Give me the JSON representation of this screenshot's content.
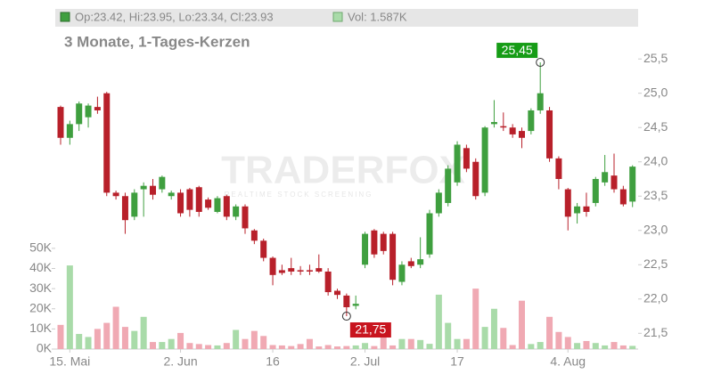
{
  "chart_data": {
    "type": "candlestick",
    "subtitle": "3 Monate, 1-Tages-Kerzen",
    "header": {
      "ohlc": "Op:23.42, Hi:23.95, Lo:23.34, Cl:23.93",
      "volume": "Vol: 1.587K"
    },
    "watermark": [
      "TRADERFOX",
      "REALTIME STOCK SCREENING"
    ],
    "categories": [
      null,
      "15. Mai",
      null,
      null,
      null,
      null,
      null,
      null,
      null,
      null,
      null,
      null,
      null,
      "2. Jun",
      null,
      null,
      null,
      null,
      null,
      null,
      null,
      null,
      null,
      "16",
      null,
      null,
      null,
      null,
      null,
      null,
      null,
      null,
      null,
      "2. Jul",
      null,
      null,
      null,
      null,
      null,
      null,
      null,
      null,
      null,
      "17",
      null,
      null,
      null,
      null,
      null,
      null,
      null,
      null,
      null,
      null,
      null,
      "4. Aug",
      null,
      null,
      null,
      null,
      null,
      null,
      null
    ],
    "open": [
      24.8,
      24.35,
      24.55,
      24.65,
      24.8,
      25.0,
      23.55,
      23.5,
      23.2,
      23.6,
      23.65,
      23.6,
      23.5,
      23.55,
      23.6,
      23.63,
      23.45,
      23.27,
      23.5,
      23.2,
      23.35,
      23.0,
      22.85,
      22.6,
      22.42,
      22.45,
      22.42,
      22.42,
      22.45,
      22.4,
      22.12,
      22.05,
      21.9,
      22.5,
      23.0,
      22.95,
      22.95,
      22.25,
      22.55,
      22.5,
      22.65,
      23.25,
      23.4,
      23.7,
      24.2,
      24.0,
      23.55,
      24.55,
      24.52,
      24.5,
      24.45,
      24.45,
      24.75,
      24.75,
      24.05,
      23.6,
      23.25,
      23.35,
      23.4,
      23.7,
      23.8,
      23.6,
      23.42
    ],
    "high": [
      24.82,
      24.6,
      24.88,
      24.85,
      24.95,
      25.02,
      23.58,
      23.55,
      23.6,
      23.7,
      23.75,
      23.8,
      23.58,
      23.6,
      23.62,
      23.65,
      23.48,
      23.5,
      23.52,
      23.38,
      23.38,
      23.02,
      22.88,
      22.62,
      22.5,
      22.6,
      22.48,
      22.5,
      22.65,
      22.45,
      22.15,
      22.08,
      22.05,
      22.98,
      23.02,
      22.98,
      22.98,
      22.55,
      22.6,
      22.9,
      23.3,
      23.6,
      23.95,
      24.3,
      24.25,
      24.05,
      24.52,
      24.9,
      24.72,
      24.55,
      24.5,
      24.78,
      25.45,
      24.8,
      24.08,
      23.62,
      23.4,
      23.55,
      23.78,
      24.1,
      24.12,
      23.65,
      23.95
    ],
    "low": [
      24.25,
      24.25,
      24.45,
      24.5,
      24.7,
      23.5,
      23.45,
      22.95,
      23.15,
      23.2,
      23.45,
      23.55,
      23.45,
      23.2,
      23.2,
      23.2,
      23.3,
      23.25,
      23.15,
      23.15,
      22.95,
      22.8,
      22.55,
      22.2,
      22.35,
      22.35,
      22.35,
      22.35,
      22.38,
      22.05,
      22.0,
      21.75,
      21.85,
      22.45,
      22.6,
      22.65,
      22.2,
      22.2,
      22.45,
      22.45,
      22.6,
      23.2,
      23.35,
      23.65,
      23.85,
      23.45,
      23.5,
      24.5,
      24.45,
      24.35,
      24.2,
      24.4,
      24.7,
      24.0,
      23.6,
      23.0,
      23.1,
      23.2,
      23.35,
      23.65,
      23.55,
      23.35,
      23.34
    ],
    "close": [
      24.35,
      24.55,
      24.85,
      24.82,
      24.75,
      23.55,
      23.5,
      23.15,
      23.55,
      23.65,
      23.52,
      23.78,
      23.55,
      23.25,
      23.3,
      23.27,
      23.33,
      23.47,
      23.2,
      23.35,
      23.03,
      22.85,
      22.6,
      22.35,
      22.38,
      22.4,
      22.4,
      22.4,
      22.4,
      22.1,
      22.06,
      21.88,
      21.93,
      22.95,
      22.65,
      22.7,
      22.28,
      22.5,
      22.48,
      22.58,
      23.25,
      23.55,
      23.9,
      24.25,
      23.9,
      23.5,
      24.5,
      24.58,
      24.5,
      24.4,
      24.35,
      24.75,
      25.0,
      24.05,
      23.75,
      23.2,
      23.35,
      23.27,
      23.75,
      23.85,
      23.6,
      23.38,
      23.93
    ],
    "volume": [
      12000,
      41500,
      7500,
      6000,
      10000,
      13000,
      21000,
      11000,
      9000,
      16000,
      3500,
      3500,
      5000,
      8000,
      3000,
      2500,
      2000,
      1800,
      3000,
      9500,
      5000,
      9000,
      6500,
      2000,
      1800,
      1500,
      2500,
      5000,
      1300,
      2000,
      1300,
      1500,
      1800,
      3000,
      1500,
      6000,
      1800,
      5000,
      5000,
      4500,
      2600,
      27000,
      13000,
      5000,
      5000,
      30000,
      11000,
      20000,
      10500,
      2000,
      24000,
      2500,
      3500,
      16000,
      8500,
      6000,
      3000,
      4000,
      3000,
      1800,
      3500,
      1800,
      1587
    ],
    "up_color": "#3f9f3f",
    "down_color": "#b8202a",
    "volume_up_color": "#a9dba9",
    "volume_down_color": "#f0a9b3",
    "ylim": [
      21.27,
      25.97
    ],
    "yticks": [
      {
        "value": 21.5,
        "label": "21,5"
      },
      {
        "value": 22.0,
        "label": "22,0"
      },
      {
        "value": 22.5,
        "label": "22,5"
      },
      {
        "value": 23.0,
        "label": "23,0"
      },
      {
        "value": 23.5,
        "label": "23,5"
      },
      {
        "value": 24.0,
        "label": "24,0"
      },
      {
        "value": 24.5,
        "label": "24,5"
      },
      {
        "value": 25.0,
        "label": "25,0"
      },
      {
        "value": 25.5,
        "label": "25,5"
      }
    ],
    "y2lim": [
      0,
      160000
    ],
    "y2ticks": [
      {
        "value": 0,
        "label": "0K"
      },
      {
        "value": 10000,
        "label": "10K"
      },
      {
        "value": 20000,
        "label": "20K"
      },
      {
        "value": 30000,
        "label": "30K"
      },
      {
        "value": 40000,
        "label": "40K"
      },
      {
        "value": 50000,
        "label": "50K"
      }
    ],
    "annotations": [
      {
        "index": 52,
        "value": 25.45,
        "label": "25,45"
      },
      {
        "index": 31,
        "value": 21.75,
        "label": "21,75"
      }
    ]
  }
}
